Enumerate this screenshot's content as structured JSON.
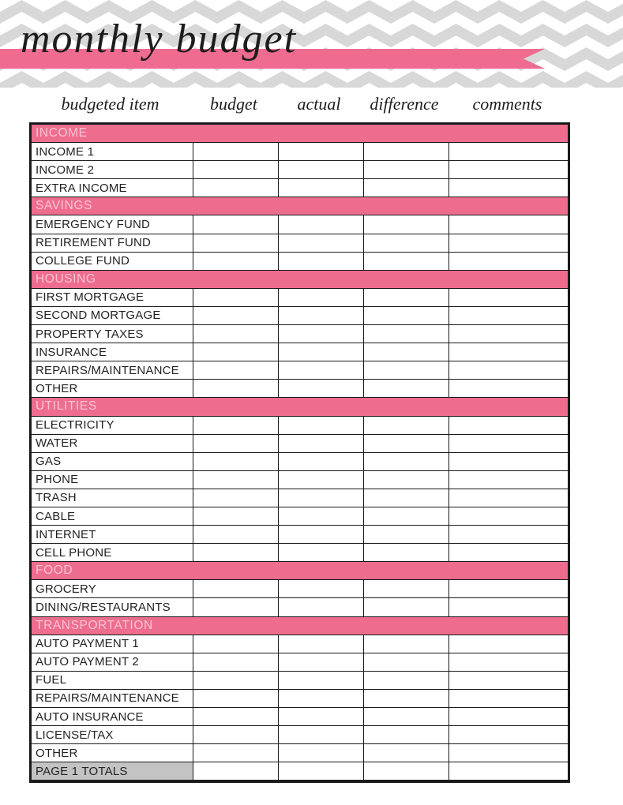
{
  "page": {
    "title": "monthly budget"
  },
  "colors": {
    "chevron_gray": "#d8d8d8",
    "ribbon_pink": "#ef6c90",
    "section_header_pink": "#ee6d8e",
    "section_header_text_pink": "#f9c3d3",
    "totals_cell_gray": "#c3c3c3",
    "grid_border_black": "#1a1a1a"
  },
  "columns": [
    "budgeted item",
    "budget",
    "actual",
    "difference",
    "comments"
  ],
  "table": {
    "sections": [
      {
        "name": "INCOME",
        "items": [
          "INCOME 1",
          "INCOME 2",
          "EXTRA INCOME"
        ]
      },
      {
        "name": "SAVINGS",
        "items": [
          "EMERGENCY FUND",
          "RETIREMENT FUND",
          "COLLEGE FUND"
        ]
      },
      {
        "name": "HOUSING",
        "items": [
          "FIRST MORTGAGE",
          "SECOND MORTGAGE",
          "PROPERTY TAXES",
          "INSURANCE",
          "REPAIRS/MAINTENANCE",
          "OTHER"
        ]
      },
      {
        "name": "UTILITIES",
        "items": [
          "ELECTRICITY",
          "WATER",
          "GAS",
          "PHONE",
          "TRASH",
          "CABLE",
          "INTERNET",
          "CELL PHONE"
        ]
      },
      {
        "name": "FOOD",
        "items": [
          "GROCERY",
          "DINING/RESTAURANTS"
        ]
      },
      {
        "name": "TRANSPORTATION",
        "items": [
          "AUTO PAYMENT 1",
          "AUTO PAYMENT 2",
          "FUEL",
          "REPAIRS/MAINTENANCE",
          "AUTO INSURANCE",
          "LICENSE/TAX",
          "OTHER"
        ]
      }
    ],
    "totals_row_label": "PAGE 1 TOTALS",
    "empty_cell_value": ""
  }
}
